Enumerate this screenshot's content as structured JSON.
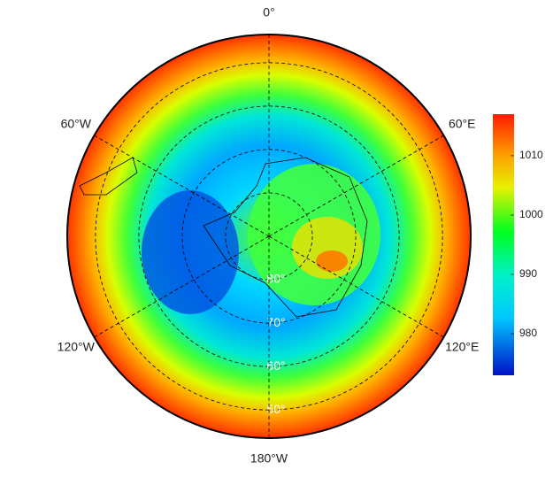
{
  "map": {
    "projection": "south-polar-stereographic",
    "latlim": [
      -90,
      -43.5
    ],
    "lon_labels": [
      {
        "value": 0,
        "label": "0°"
      },
      {
        "value": 60,
        "label": "60°E"
      },
      {
        "value": 120,
        "label": "120°E"
      },
      {
        "value": 180,
        "label": "180°W"
      },
      {
        "value": -120,
        "label": "120°W"
      },
      {
        "value": -60,
        "label": "60°W"
      }
    ],
    "lat_labels": [
      {
        "value": -80,
        "label": "80°"
      },
      {
        "value": -70,
        "label": "70°"
      },
      {
        "value": -60,
        "label": "60°"
      },
      {
        "value": -50,
        "label": "50°"
      }
    ],
    "colorbar": {
      "lim": [
        973,
        1017
      ],
      "ticks": [
        980,
        990,
        1000,
        1010
      ]
    }
  }
}
